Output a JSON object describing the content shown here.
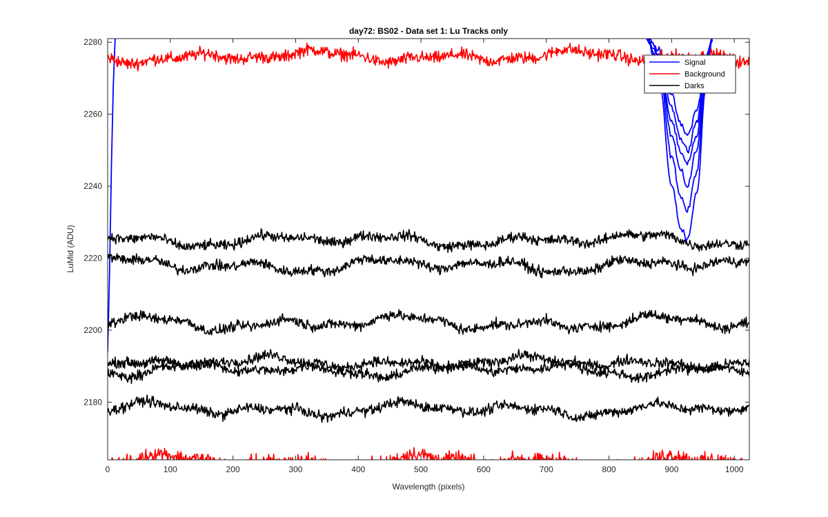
{
  "chart_data": {
    "type": "line",
    "title": "day72: BS02 - Data set 1: Lu Tracks only",
    "xlabel": "Wavelength (pixels)",
    "ylabel": "LuMid (ADU)",
    "xlim": [
      0,
      1024
    ],
    "ylim": [
      2164,
      2281
    ],
    "x_ticks": [
      0,
      100,
      200,
      300,
      400,
      500,
      600,
      700,
      800,
      900,
      1000
    ],
    "y_ticks": [
      2180,
      2200,
      2220,
      2240,
      2260,
      2280
    ],
    "grid": false,
    "legend_position": "top-right",
    "legend": [
      "Signal",
      "Background",
      "Darks"
    ],
    "colors": {
      "Signal": "#0000ff",
      "Background": "#ff0000",
      "Darks": "#000000"
    },
    "series": [
      {
        "name": "Signal",
        "group": "Signal",
        "note": "rises off-scale at left; dips into view near x~900-960",
        "left_edge": {
          "x": [
            0,
            3,
            6,
            9,
            12,
            15
          ],
          "y": [
            2194,
            2215,
            2245,
            2268,
            2281,
            2281
          ]
        },
        "dips": [
          {
            "x": [
              860,
              880,
              900,
              915,
              925,
              940,
              955,
              965
            ],
            "y": [
              2281,
              2270,
              2240,
              2228,
              2225,
              2238,
              2268,
              2281
            ]
          },
          {
            "x": [
              860,
              880,
              900,
              915,
              925,
              940,
              955,
              965
            ],
            "y": [
              2281,
              2273,
              2248,
              2237,
              2233,
              2244,
              2270,
              2281
            ]
          },
          {
            "x": [
              860,
              880,
              900,
              915,
              925,
              940,
              955,
              965
            ],
            "y": [
              2281,
              2275,
              2254,
              2244,
              2240,
              2250,
              2272,
              2281
            ]
          },
          {
            "x": [
              860,
              880,
              900,
              915,
              925,
              940,
              955,
              965
            ],
            "y": [
              2281,
              2276,
              2258,
              2249,
              2246,
              2254,
              2274,
              2281
            ]
          },
          {
            "x": [
              860,
              880,
              900,
              915,
              925,
              940,
              955,
              965
            ],
            "y": [
              2281,
              2277,
              2262,
              2253,
              2250,
              2258,
              2275,
              2281
            ]
          },
          {
            "x": [
              860,
              880,
              900,
              915,
              925,
              940,
              955,
              965
            ],
            "y": [
              2281,
              2278,
              2265,
              2257,
              2254,
              2261,
              2276,
              2281
            ]
          }
        ]
      },
      {
        "name": "Background",
        "group": "Background",
        "level": 2276,
        "amplitude": 1.6,
        "noise": 1.2
      },
      {
        "name": "Background",
        "group": "Background",
        "level": 2163.5,
        "amplitude": 1.8,
        "noise": 1.4,
        "clipped_below": true
      },
      {
        "name": "Darks",
        "group": "Darks",
        "level": 2225,
        "amplitude": 1.8,
        "noise": 1.0
      },
      {
        "name": "Darks",
        "group": "Darks",
        "level": 2218,
        "amplitude": 2.0,
        "noise": 1.0
      },
      {
        "name": "Darks",
        "group": "Darks",
        "level": 2202,
        "amplitude": 2.0,
        "noise": 1.0
      },
      {
        "name": "Darks",
        "group": "Darks",
        "level": 2191,
        "amplitude": 1.6,
        "noise": 1.0
      },
      {
        "name": "Darks",
        "group": "Darks",
        "level": 2189,
        "amplitude": 1.8,
        "noise": 1.0
      },
      {
        "name": "Darks",
        "group": "Darks",
        "level": 2178,
        "amplitude": 1.8,
        "noise": 1.0
      }
    ]
  }
}
